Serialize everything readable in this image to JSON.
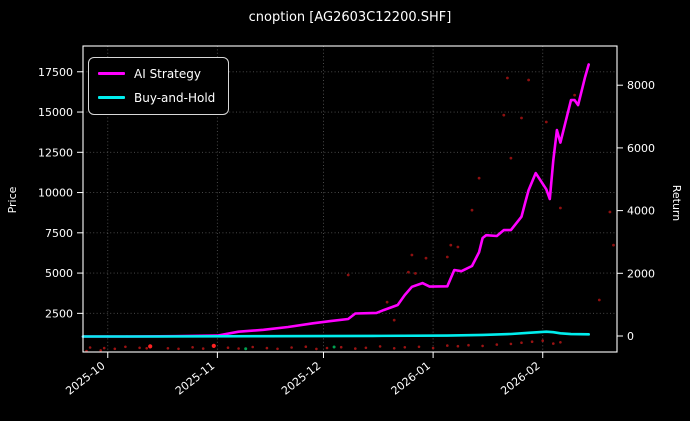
{
  "window": {
    "title": "cnoption [AG2603C12200.SHF]"
  },
  "chart_data": {
    "type": "line",
    "title": "cnoption [AG2603C12200.SHF]",
    "background": "#000000",
    "grid": true,
    "x_axis": {
      "domain": [
        "2025-09-24",
        "2026-02-22"
      ],
      "ticks": [
        {
          "date": "2025-10-01",
          "label": "2025-10"
        },
        {
          "date": "2025-11-01",
          "label": "2025-11"
        },
        {
          "date": "2025-12-01",
          "label": "2025-12"
        },
        {
          "date": "2026-01-01",
          "label": "2026-01"
        },
        {
          "date": "2026-02-01",
          "label": "2026-02"
        }
      ]
    },
    "left_axis": {
      "label": "Price",
      "domain": [
        100,
        19100
      ],
      "ticks": [
        {
          "v": 2500,
          "label": "2500"
        },
        {
          "v": 5000,
          "label": "5000"
        },
        {
          "v": 7500,
          "label": "7500"
        },
        {
          "v": 10000,
          "label": "10000"
        },
        {
          "v": 12500,
          "label": "12500"
        },
        {
          "v": 15000,
          "label": "15000"
        },
        {
          "v": 17500,
          "label": "17500"
        }
      ]
    },
    "right_axis": {
      "label": "Return",
      "ticks": [
        {
          "v": 0,
          "label": "0"
        },
        {
          "v": 2000,
          "label": "2000"
        },
        {
          "v": 4000,
          "label": "4000"
        },
        {
          "v": 6000,
          "label": "6000"
        },
        {
          "v": 8000,
          "label": "8000"
        }
      ]
    },
    "legend": {
      "position": "upper-left",
      "entries": [
        {
          "label": "AI Strategy",
          "color": "#ff00ff"
        },
        {
          "label": "Buy-and-Hold",
          "color": "#00eeee"
        }
      ]
    },
    "series": [
      {
        "name": "AI Strategy",
        "color": "#ff00ff",
        "width": 2.6,
        "points": [
          [
            "2025-09-24",
            1060
          ],
          [
            "2025-10-06",
            1060
          ],
          [
            "2025-10-20",
            1080
          ],
          [
            "2025-11-01",
            1120
          ],
          [
            "2025-11-07",
            1360
          ],
          [
            "2025-11-14",
            1480
          ],
          [
            "2025-11-21",
            1650
          ],
          [
            "2025-11-28",
            1880
          ],
          [
            "2025-12-03",
            2020
          ],
          [
            "2025-12-08",
            2150
          ],
          [
            "2025-12-10",
            2490
          ],
          [
            "2025-12-16",
            2530
          ],
          [
            "2025-12-18",
            2700
          ],
          [
            "2025-12-22",
            3020
          ],
          [
            "2025-12-24",
            3640
          ],
          [
            "2025-12-26",
            4150
          ],
          [
            "2025-12-29",
            4380
          ],
          [
            "2025-12-31",
            4160
          ],
          [
            "2026-01-05",
            4180
          ],
          [
            "2026-01-07",
            5190
          ],
          [
            "2026-01-09",
            5120
          ],
          [
            "2026-01-12",
            5440
          ],
          [
            "2026-01-14",
            6300
          ],
          [
            "2026-01-15",
            7180
          ],
          [
            "2026-01-16",
            7350
          ],
          [
            "2026-01-19",
            7300
          ],
          [
            "2026-01-21",
            7670
          ],
          [
            "2026-01-23",
            7670
          ],
          [
            "2026-01-26",
            8500
          ],
          [
            "2026-01-27",
            9350
          ],
          [
            "2026-01-28",
            10150
          ],
          [
            "2026-01-30",
            11210
          ],
          [
            "2026-02-02",
            10200
          ],
          [
            "2026-02-03",
            9600
          ],
          [
            "2026-02-04",
            12000
          ],
          [
            "2026-02-05",
            13880
          ],
          [
            "2026-02-06",
            13100
          ],
          [
            "2026-02-09",
            15740
          ],
          [
            "2026-02-10",
            15740
          ],
          [
            "2026-02-11",
            15430
          ],
          [
            "2026-02-12",
            16300
          ],
          [
            "2026-02-13",
            17200
          ],
          [
            "2026-02-14",
            17950
          ]
        ]
      },
      {
        "name": "Buy-and-Hold",
        "color": "#00eeee",
        "width": 2.6,
        "points": [
          [
            "2025-09-24",
            1060
          ],
          [
            "2025-10-15",
            1065
          ],
          [
            "2025-11-15",
            1080
          ],
          [
            "2025-12-15",
            1100
          ],
          [
            "2026-01-05",
            1120
          ],
          [
            "2026-01-15",
            1160
          ],
          [
            "2026-01-23",
            1220
          ],
          [
            "2026-01-28",
            1290
          ],
          [
            "2026-02-02",
            1360
          ],
          [
            "2026-02-04",
            1330
          ],
          [
            "2026-02-06",
            1260
          ],
          [
            "2026-02-09",
            1210
          ],
          [
            "2026-02-14",
            1200
          ]
        ]
      }
    ],
    "scatter": {
      "x_unit": "days_since_2025-09-24",
      "groups": [
        {
          "name": "price-dots-dim-red",
          "color": "#9b1313",
          "radius": 1.3,
          "points": [
            [
              1,
              160
            ],
            [
              2,
              380
            ],
            [
              5,
              200
            ],
            [
              6,
              340
            ],
            [
              9,
              300
            ],
            [
              12,
              420
            ],
            [
              16,
              360
            ],
            [
              18,
              330
            ],
            [
              24,
              330
            ],
            [
              27,
              300
            ],
            [
              31,
              390
            ],
            [
              34,
              310
            ],
            [
              41,
              370
            ],
            [
              44,
              320
            ],
            [
              48,
              410
            ],
            [
              52,
              340
            ],
            [
              55,
              300
            ],
            [
              59,
              380
            ],
            [
              63,
              430
            ],
            [
              66,
              290
            ],
            [
              69,
              350
            ],
            [
              73,
              400
            ],
            [
              77,
              310
            ],
            [
              80,
              360
            ],
            [
              84,
              450
            ],
            [
              88,
              330
            ],
            [
              91,
              390
            ],
            [
              95,
              420
            ],
            [
              99,
              350
            ],
            [
              103,
              500
            ],
            [
              106,
              460
            ],
            [
              109,
              520
            ],
            [
              113,
              480
            ],
            [
              117,
              560
            ],
            [
              121,
              600
            ],
            [
              124,
              680
            ],
            [
              127,
              740
            ],
            [
              130,
              800
            ],
            [
              133,
              620
            ],
            [
              135,
              700
            ]
          ]
        },
        {
          "name": "price-dots-bright-red",
          "color": "#ff2222",
          "radius": 2.1,
          "points": [
            [
              19,
              450
            ],
            [
              37,
              480
            ]
          ]
        },
        {
          "name": "price-dots-green",
          "color": "#00a050",
          "radius": 1.5,
          "points": [
            [
              46,
              300
            ],
            [
              71,
              410
            ]
          ]
        },
        {
          "name": "upper-dots-red",
          "color": "#8f1010",
          "radius": 1.4,
          "points": [
            [
              75,
              4880
            ],
            [
              86,
              3200
            ],
            [
              88,
              2080
            ],
            [
              92,
              5060
            ],
            [
              93,
              6120
            ],
            [
              94,
              4980
            ],
            [
              97,
              5930
            ],
            [
              103,
              6000
            ],
            [
              104,
              6740
            ],
            [
              106,
              6620
            ],
            [
              110,
              8910
            ],
            [
              112,
              10900
            ],
            [
              119,
              14810
            ],
            [
              120,
              17110
            ],
            [
              121,
              12140
            ],
            [
              124,
              14630
            ],
            [
              126,
              16990
            ],
            [
              131,
              14380
            ],
            [
              135,
              9040
            ],
            [
              139,
              16050
            ],
            [
              146,
              3330
            ],
            [
              149,
              8790
            ],
            [
              150,
              6740
            ]
          ]
        }
      ]
    }
  }
}
